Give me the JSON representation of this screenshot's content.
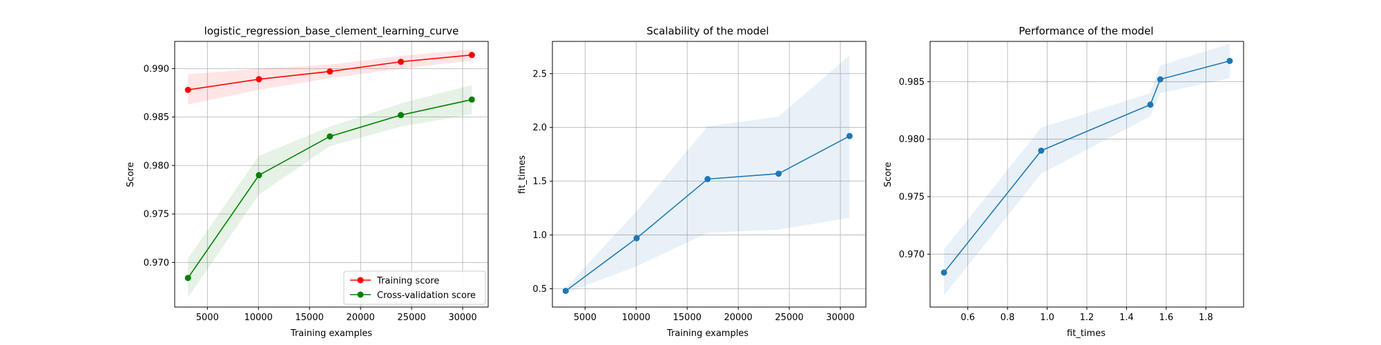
{
  "colors": {
    "training": "#ff0000",
    "cross_validation": "#008000",
    "model": "#1f77b4"
  },
  "chart_data": [
    {
      "type": "line",
      "title": "logistic_regression_base_clement_learning_curve",
      "xlabel": "Training examples",
      "ylabel": "Score",
      "xlim": [
        1800,
        32500
      ],
      "ylim": [
        0.9654,
        0.9928
      ],
      "xticks": [
        5000,
        10000,
        15000,
        20000,
        25000,
        30000
      ],
      "yticks": [
        0.97,
        0.975,
        0.98,
        0.985,
        0.99
      ],
      "xtick_labels": [
        "5000",
        "10000",
        "15000",
        "20000",
        "25000",
        "30000"
      ],
      "ytick_labels": [
        "0.970",
        "0.975",
        "0.980",
        "0.985",
        "0.990"
      ],
      "grid": true,
      "legend": "lower-right",
      "x": [
        3100,
        10050,
        17000,
        23950,
        30900
      ],
      "series": [
        {
          "name": "Training score",
          "color": "#ff0000",
          "values": [
            0.9878,
            0.9889,
            0.9897,
            0.9907,
            0.9914
          ],
          "lower": [
            0.9863,
            0.9878,
            0.989,
            0.99,
            0.9908
          ],
          "upper": [
            0.9894,
            0.99,
            0.9904,
            0.9913,
            0.992
          ]
        },
        {
          "name": "Cross-validation score",
          "color": "#008000",
          "values": [
            0.9684,
            0.979,
            0.983,
            0.9852,
            0.9868
          ],
          "lower": [
            0.9664,
            0.977,
            0.982,
            0.984,
            0.9853
          ],
          "upper": [
            0.9704,
            0.981,
            0.984,
            0.9864,
            0.9883
          ]
        }
      ]
    },
    {
      "type": "line",
      "title": "Scalability of the model",
      "xlabel": "Training examples",
      "ylabel": "fit_times",
      "xlim": [
        1800,
        32500
      ],
      "ylim": [
        0.33,
        2.8
      ],
      "xticks": [
        5000,
        10000,
        15000,
        20000,
        25000,
        30000
      ],
      "yticks": [
        0.5,
        1.0,
        1.5,
        2.0,
        2.5
      ],
      "xtick_labels": [
        "5000",
        "10000",
        "15000",
        "20000",
        "25000",
        "30000"
      ],
      "ytick_labels": [
        "0.5",
        "1.0",
        "1.5",
        "2.0",
        "2.5"
      ],
      "grid": true,
      "x": [
        3100,
        10050,
        17000,
        23950,
        30900
      ],
      "series": [
        {
          "color": "#1f77b4",
          "values": [
            0.48,
            0.97,
            1.52,
            1.57,
            1.92
          ],
          "lower": [
            0.46,
            0.71,
            1.02,
            1.05,
            1.16
          ],
          "upper": [
            0.51,
            1.22,
            2.01,
            2.1,
            2.67
          ]
        }
      ]
    },
    {
      "type": "line",
      "title": "Performance of the model",
      "xlabel": "fit_times",
      "ylabel": "Score",
      "xlim": [
        0.41,
        1.99
      ],
      "ylim": [
        0.9654,
        0.9885
      ],
      "xticks": [
        0.6,
        0.8,
        1.0,
        1.2,
        1.4,
        1.6,
        1.8
      ],
      "yticks": [
        0.97,
        0.975,
        0.98,
        0.985
      ],
      "xtick_labels": [
        "0.6",
        "0.8",
        "1.0",
        "1.2",
        "1.4",
        "1.6",
        "1.8"
      ],
      "ytick_labels": [
        "0.970",
        "0.975",
        "0.980",
        "0.985"
      ],
      "grid": true,
      "x": [
        0.48,
        0.97,
        1.52,
        1.57,
        1.92
      ],
      "series": [
        {
          "color": "#1f77b4",
          "values": [
            0.9684,
            0.979,
            0.983,
            0.9852,
            0.9868
          ],
          "lower": [
            0.9664,
            0.977,
            0.982,
            0.984,
            0.9853
          ],
          "upper": [
            0.9704,
            0.981,
            0.984,
            0.9864,
            0.9883
          ]
        }
      ]
    }
  ]
}
